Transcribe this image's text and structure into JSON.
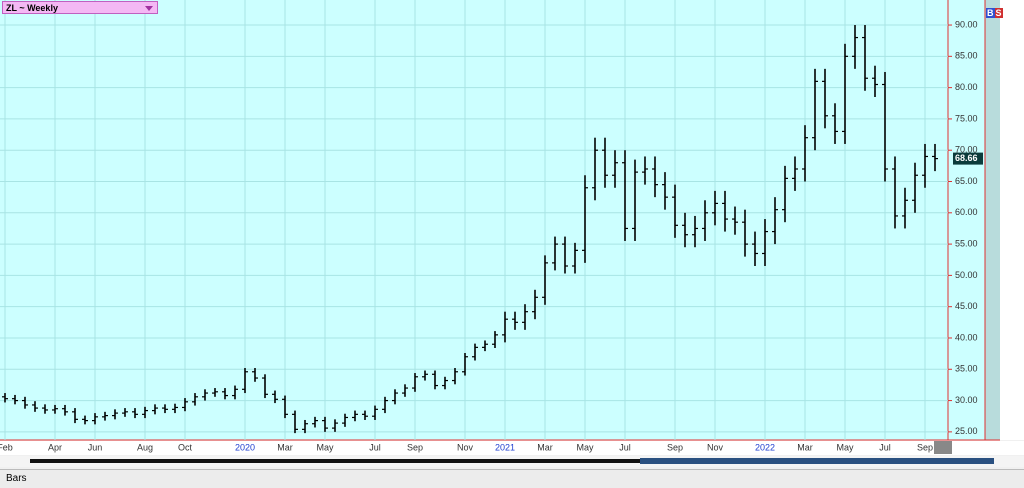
{
  "header": {
    "symbol": "ZL ~ Weekly",
    "buy": "B",
    "sell": "S"
  },
  "footer": {
    "mode": "Bars"
  },
  "chart_data": {
    "type": "ohlc",
    "color": "#000000",
    "grid": true,
    "grid_color": "#a8e4e4",
    "categories": [
      "Feb",
      null,
      null,
      null,
      null,
      "Apr",
      null,
      null,
      null,
      "Jun",
      null,
      null,
      null,
      null,
      "Aug",
      null,
      null,
      null,
      "Oct",
      null,
      null,
      null,
      null,
      null,
      "2020",
      null,
      null,
      null,
      "Mar",
      null,
      null,
      null,
      "May",
      null,
      null,
      null,
      null,
      "Jul",
      null,
      null,
      null,
      "Sep",
      null,
      null,
      null,
      null,
      "Nov",
      null,
      null,
      null,
      "2021",
      null,
      null,
      null,
      "Mar",
      null,
      null,
      null,
      "May",
      null,
      null,
      null,
      "Jul",
      null,
      null,
      null,
      null,
      "Sep",
      null,
      null,
      null,
      "Nov",
      null,
      null,
      null,
      null,
      "2022",
      null,
      null,
      null,
      "Mar",
      null,
      null,
      null,
      "May",
      null,
      null,
      null,
      "Jul",
      null,
      null,
      null,
      "Sep",
      null
    ],
    "open": [
      30.6,
      30.3,
      30.0,
      29.3,
      28.8,
      28.5,
      28.7,
      28.2,
      27.0,
      26.8,
      27.4,
      27.6,
      28.0,
      28.2,
      27.8,
      28.4,
      28.8,
      28.6,
      28.9,
      29.8,
      30.6,
      31.2,
      31.4,
      30.8,
      31.8,
      34.6,
      33.6,
      31.0,
      30.2,
      27.8,
      25.4,
      26.3,
      26.8,
      25.6,
      26.4,
      27.3,
      27.8,
      27.5,
      28.6,
      30.0,
      31.2,
      32.0,
      33.8,
      34.2,
      32.4,
      33.2,
      34.6,
      37.0,
      38.5,
      39.0,
      40.5,
      43.0,
      42.5,
      44.2,
      46.5,
      52.0,
      55.0,
      51.5,
      54.0,
      64.0,
      70.0,
      66.0,
      68.0,
      57.5,
      66.5,
      67.0,
      64.5,
      62.5,
      58.0,
      56.5,
      57.5,
      60.0,
      61.5,
      59.0,
      58.5,
      55.0,
      53.5,
      57.0,
      60.5,
      65.5,
      67.0,
      72.0,
      81.0,
      75.5,
      73.0,
      85.0,
      88.0,
      81.5,
      80.5,
      67.0,
      59.5,
      62.0,
      66.0,
      69.0
    ],
    "high": [
      31.2,
      30.9,
      30.6,
      29.9,
      29.4,
      29.3,
      29.3,
      28.8,
      27.6,
      28.0,
      28.2,
      28.6,
      28.8,
      28.8,
      29.0,
      29.4,
      29.4,
      29.5,
      30.4,
      31.2,
      31.8,
      32.0,
      32.0,
      32.4,
      35.2,
      35.2,
      34.2,
      31.6,
      30.8,
      28.4,
      26.9,
      27.4,
      27.4,
      27.0,
      27.9,
      28.4,
      28.4,
      29.2,
      30.6,
      31.8,
      32.6,
      34.4,
      34.8,
      34.8,
      33.8,
      35.2,
      37.6,
      39.1,
      39.6,
      41.1,
      44.2,
      44.2,
      45.4,
      47.7,
      53.2,
      56.2,
      56.2,
      55.2,
      66.0,
      72.0,
      72.0,
      70.0,
      70.0,
      68.5,
      69.0,
      69.0,
      66.5,
      64.5,
      60.0,
      59.5,
      62.0,
      63.5,
      63.5,
      61.0,
      60.5,
      57.0,
      59.0,
      62.5,
      67.5,
      69.0,
      74.0,
      83.0,
      83.0,
      77.5,
      87.0,
      90.0,
      90.0,
      83.5,
      82.5,
      69.0,
      64.0,
      68.0,
      71.0,
      71.0
    ],
    "low": [
      29.7,
      29.4,
      28.7,
      28.2,
      27.9,
      27.9,
      27.6,
      26.4,
      26.2,
      26.2,
      26.8,
      27.0,
      27.4,
      27.2,
      27.2,
      27.8,
      28.0,
      28.0,
      28.3,
      29.2,
      30.0,
      30.6,
      30.2,
      30.2,
      31.2,
      33.0,
      30.4,
      29.6,
      27.2,
      24.8,
      24.8,
      25.7,
      25.0,
      25.0,
      25.8,
      26.7,
      26.9,
      26.9,
      28.0,
      29.4,
      30.6,
      31.4,
      33.2,
      31.8,
      31.8,
      32.6,
      34.0,
      36.4,
      37.9,
      38.4,
      39.3,
      41.3,
      41.3,
      43.0,
      45.3,
      50.8,
      50.3,
      50.3,
      52.0,
      62.0,
      64.0,
      64.0,
      55.5,
      55.5,
      64.5,
      62.5,
      60.5,
      56.0,
      54.5,
      54.5,
      55.5,
      58.0,
      57.0,
      56.5,
      53.0,
      51.5,
      51.5,
      55.0,
      58.5,
      63.5,
      65.0,
      70.0,
      73.5,
      71.0,
      71.0,
      83.0,
      79.5,
      78.5,
      65.0,
      57.5,
      57.5,
      60.0,
      64.0,
      66.66
    ],
    "close": [
      30.3,
      30.0,
      29.3,
      28.8,
      28.5,
      28.7,
      28.2,
      27.0,
      26.8,
      27.4,
      27.6,
      28.0,
      28.2,
      27.8,
      28.4,
      28.8,
      28.6,
      28.9,
      29.8,
      30.6,
      31.2,
      31.4,
      30.8,
      31.8,
      34.6,
      33.6,
      31.0,
      30.2,
      27.8,
      25.4,
      26.3,
      26.8,
      25.6,
      26.4,
      27.3,
      27.8,
      27.5,
      28.6,
      30.0,
      31.2,
      32.0,
      33.8,
      34.2,
      32.4,
      33.2,
      34.6,
      37.0,
      38.5,
      39.0,
      40.5,
      43.0,
      42.5,
      44.2,
      46.5,
      52.0,
      55.0,
      51.5,
      54.0,
      64.0,
      70.0,
      66.0,
      68.0,
      57.5,
      66.5,
      67.0,
      64.5,
      62.5,
      58.0,
      56.5,
      57.5,
      60.0,
      61.5,
      59.0,
      58.5,
      55.0,
      53.5,
      57.0,
      60.5,
      65.5,
      67.0,
      72.0,
      81.0,
      75.5,
      73.0,
      85.0,
      88.0,
      81.5,
      80.5,
      67.0,
      59.5,
      62.0,
      66.0,
      69.0,
      68.66
    ],
    "ylim": [
      23.7,
      94
    ],
    "yticks": [
      {
        "value": 25,
        "label": "25.00"
      },
      {
        "value": 30,
        "label": "30.00"
      },
      {
        "value": 35,
        "label": "35.00"
      },
      {
        "value": 40,
        "label": "40.00"
      },
      {
        "value": 45,
        "label": "45.00"
      },
      {
        "value": 50,
        "label": "50.00"
      },
      {
        "value": 55,
        "label": "55.00"
      },
      {
        "value": 60,
        "label": "60.00"
      },
      {
        "value": 65,
        "label": "65.00"
      },
      {
        "value": 70,
        "label": "70.00"
      },
      {
        "value": 75,
        "label": "75.00"
      },
      {
        "value": 80,
        "label": "80.00"
      },
      {
        "value": 85,
        "label": "85.00"
      },
      {
        "value": 90,
        "label": "90.00"
      }
    ]
  }
}
